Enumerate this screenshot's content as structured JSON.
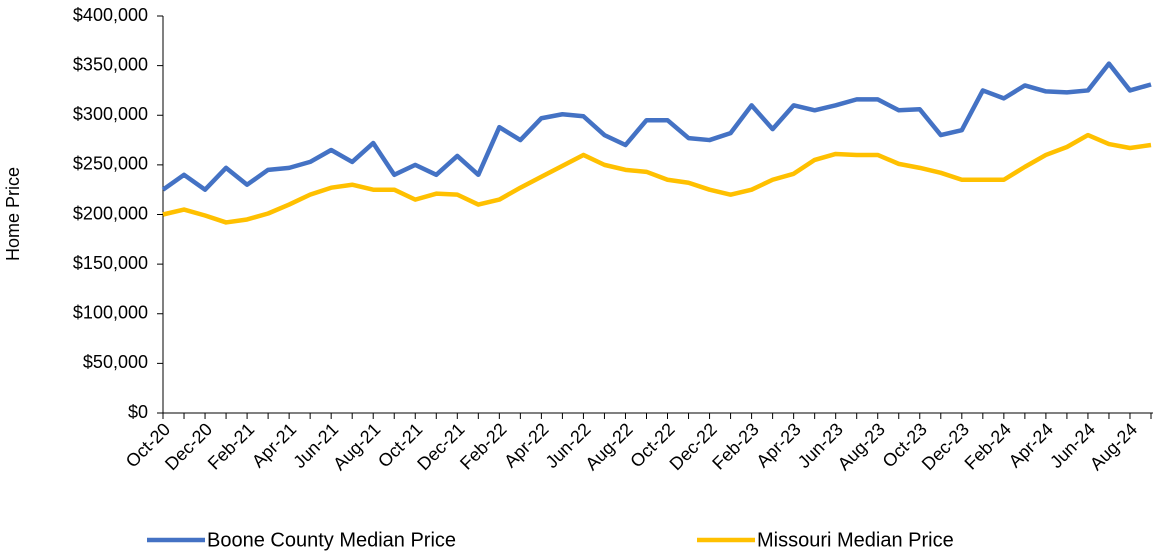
{
  "chart_data": {
    "type": "line",
    "y_label": "Home Price",
    "categories": [
      "Oct-20",
      null,
      "Dec-20",
      null,
      "Feb-21",
      null,
      "Apr-21",
      null,
      "Jun-21",
      null,
      "Aug-21",
      null,
      "Oct-21",
      null,
      "Dec-21",
      null,
      "Feb-22",
      null,
      "Apr-22",
      null,
      "Jun-22",
      null,
      "Aug-22",
      null,
      "Oct-22",
      null,
      "Dec-22",
      null,
      "Feb-23",
      null,
      "Apr-23",
      null,
      "Jun-23",
      null,
      "Aug-23",
      null,
      "Oct-23",
      null,
      "Dec-23",
      null,
      "Feb-24",
      null,
      "Apr-24",
      null,
      "Jun-24",
      null,
      "Aug-24",
      null
    ],
    "series": [
      {
        "name": "Boone County Median Price",
        "color": "#4472c4",
        "values": [
          225000,
          240000,
          225000,
          247000,
          230000,
          245000,
          247000,
          253000,
          265000,
          253000,
          272000,
          240000,
          250000,
          240000,
          259000,
          240000,
          288000,
          275000,
          297000,
          301000,
          299000,
          280000,
          270000,
          295000,
          295000,
          277000,
          275000,
          282000,
          310000,
          286000,
          310000,
          305000,
          310000,
          316000,
          316000,
          305000,
          306000,
          280000,
          285000,
          325000,
          317000,
          330000,
          324000,
          323000,
          325000,
          352000,
          325000,
          331000
        ]
      },
      {
        "name": "Missouri Median Price",
        "color": "#ffc000",
        "values": [
          200000,
          205000,
          199000,
          192000,
          195000,
          201000,
          210000,
          220000,
          227000,
          230000,
          225000,
          225000,
          215000,
          221000,
          220000,
          210000,
          215000,
          227000,
          238000,
          249000,
          260000,
          250000,
          245000,
          243000,
          235000,
          232000,
          225000,
          220000,
          225000,
          235000,
          241000,
          255000,
          261000,
          260000,
          260000,
          251000,
          247000,
          242000,
          235000,
          235000,
          235000,
          248000,
          260000,
          268000,
          280000,
          271000,
          267000,
          270000
        ]
      }
    ],
    "ylim": [
      0,
      400000
    ],
    "yticks": [
      {
        "value": 0,
        "label": "$0"
      },
      {
        "value": 50000,
        "label": "$50,000"
      },
      {
        "value": 100000,
        "label": "$100,000"
      },
      {
        "value": 150000,
        "label": "$150,000"
      },
      {
        "value": 200000,
        "label": "$200,000"
      },
      {
        "value": 250000,
        "label": "$250,000"
      },
      {
        "value": 300000,
        "label": "$300,000"
      },
      {
        "value": 350000,
        "label": "$350,000"
      },
      {
        "value": 400000,
        "label": "$400,000"
      }
    ],
    "legend": "bottom"
  }
}
